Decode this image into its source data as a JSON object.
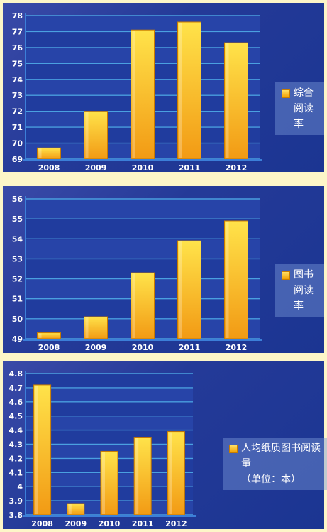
{
  "chart_data": [
    {
      "type": "bar",
      "categories": [
        "2008",
        "2009",
        "2010",
        "2011",
        "2012"
      ],
      "values": [
        69.7,
        72.0,
        77.1,
        77.6,
        76.3
      ],
      "ylim": [
        69,
        78
      ],
      "yticks": [
        69,
        70,
        71,
        72,
        73,
        74,
        75,
        76,
        77,
        78
      ],
      "legend": "综合\n阅读率",
      "legend_position": "right",
      "grid": true
    },
    {
      "type": "bar",
      "categories": [
        "2008",
        "2009",
        "2010",
        "2011",
        "2012"
      ],
      "values": [
        49.3,
        50.1,
        52.3,
        53.9,
        54.9
      ],
      "ylim": [
        49,
        56
      ],
      "yticks": [
        49,
        50,
        51,
        52,
        53,
        54,
        55,
        56
      ],
      "legend": "图书\n阅读率",
      "legend_position": "right",
      "grid": true
    },
    {
      "type": "bar",
      "categories": [
        "2008",
        "2009",
        "2010",
        "2011",
        "2012"
      ],
      "values": [
        4.72,
        3.88,
        4.25,
        4.35,
        4.39
      ],
      "ylim": [
        3.8,
        4.8
      ],
      "yticks": [
        "3.8",
        "3.9",
        "4",
        "4.1",
        "4.2",
        "4.3",
        "4.4",
        "4.5",
        "4.6",
        "4.7",
        "4.8"
      ],
      "legend": "人均纸质图书阅读量\n（单位：本）",
      "legend_position": "right",
      "grid": true
    }
  ],
  "colors": {
    "bar_top": "#ffe34a",
    "bar_bottom": "#f29a14",
    "grid": "#4aa0e0",
    "axis": "#3c7fd8",
    "plot_bg": "#233a9c"
  }
}
